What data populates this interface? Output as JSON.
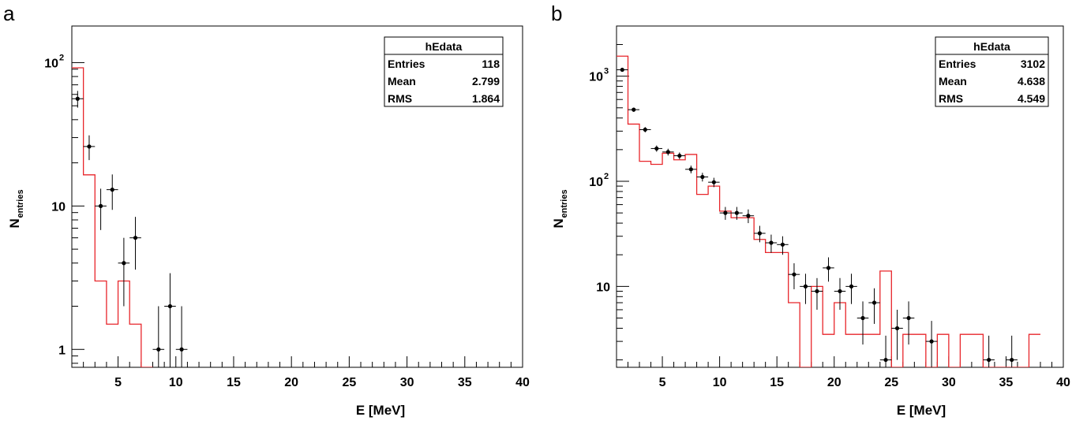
{
  "chart_data": [
    {
      "panel_label": "a",
      "type": "line",
      "description_type": "histogram with data points and error bars (log y)",
      "xlabel": "E [MeV]",
      "ylabel_main": "N",
      "ylabel_sub": "entries",
      "xlim": [
        1,
        40
      ],
      "ylim": [
        0.75,
        180
      ],
      "y_scale": "log",
      "x_ticks": [
        5,
        10,
        15,
        20,
        25,
        30,
        35,
        40
      ],
      "y_ticks": [
        {
          "value": 1,
          "label": "1",
          "sup": ""
        },
        {
          "value": 10,
          "label": "10",
          "sup": ""
        },
        {
          "value": 100,
          "label": "10",
          "sup": "2"
        }
      ],
      "stats_box": {
        "title": "hEdata",
        "rows": [
          {
            "label": "Entries",
            "value": "118"
          },
          {
            "label": "Mean",
            "value": "2.799"
          },
          {
            "label": "RMS",
            "value": "1.864"
          }
        ]
      },
      "points": [
        {
          "x": 1.5,
          "y": 56,
          "yerr": 7.5
        },
        {
          "x": 2.5,
          "y": 26,
          "yerr": 5.1
        },
        {
          "x": 3.5,
          "y": 10,
          "yerr": 3.2
        },
        {
          "x": 4.5,
          "y": 13,
          "yerr": 3.6
        },
        {
          "x": 5.5,
          "y": 4,
          "yerr": 2
        },
        {
          "x": 6.5,
          "y": 6,
          "yerr": 2.4
        },
        {
          "x": 8.5,
          "y": 1,
          "yerr": 1
        },
        {
          "x": 9.5,
          "y": 2,
          "yerr": 1.4
        },
        {
          "x": 10.5,
          "y": 1,
          "yerr": 1
        }
      ],
      "histogram": [
        {
          "x0": 1,
          "x1": 2,
          "y": 92
        },
        {
          "x0": 2,
          "x1": 3,
          "y": 16.5
        },
        {
          "x0": 3,
          "x1": 4,
          "y": 3
        },
        {
          "x0": 4,
          "x1": 5,
          "y": 1.5
        },
        {
          "x0": 5,
          "x1": 6,
          "y": 3
        },
        {
          "x0": 6,
          "x1": 7,
          "y": 1.5
        },
        {
          "x0": 7,
          "x1": 8,
          "y": 0
        }
      ],
      "colors": {
        "histogram": "#e8262b",
        "points": "#000000"
      }
    },
    {
      "panel_label": "b",
      "type": "line",
      "description_type": "histogram with data points and error bars (log y)",
      "xlabel": "E [MeV]",
      "ylabel_main": "N",
      "ylabel_sub": "entries",
      "xlim": [
        1,
        40
      ],
      "ylim": [
        1.7,
        3000
      ],
      "y_scale": "log",
      "x_ticks": [
        5,
        10,
        15,
        20,
        25,
        30,
        35,
        40
      ],
      "y_ticks": [
        {
          "value": 10,
          "label": "10",
          "sup": ""
        },
        {
          "value": 100,
          "label": "10",
          "sup": "2"
        },
        {
          "value": 1000,
          "label": "10",
          "sup": "3"
        }
      ],
      "stats_box": {
        "title": "hEdata",
        "rows": [
          {
            "label": "Entries",
            "value": "3102"
          },
          {
            "label": "Mean",
            "value": "4.638"
          },
          {
            "label": "RMS",
            "value": "4.549"
          }
        ]
      },
      "points": [
        {
          "x": 1.5,
          "y": 1150,
          "yerr": 34
        },
        {
          "x": 2.5,
          "y": 480,
          "yerr": 22
        },
        {
          "x": 3.5,
          "y": 310,
          "yerr": 18
        },
        {
          "x": 4.5,
          "y": 205,
          "yerr": 14
        },
        {
          "x": 5.5,
          "y": 190,
          "yerr": 14
        },
        {
          "x": 6.5,
          "y": 175,
          "yerr": 13
        },
        {
          "x": 7.5,
          "y": 130,
          "yerr": 11
        },
        {
          "x": 8.5,
          "y": 110,
          "yerr": 10.5
        },
        {
          "x": 9.5,
          "y": 98,
          "yerr": 10
        },
        {
          "x": 10.5,
          "y": 50,
          "yerr": 7
        },
        {
          "x": 11.5,
          "y": 50,
          "yerr": 7
        },
        {
          "x": 12.5,
          "y": 47,
          "yerr": 7
        },
        {
          "x": 13.5,
          "y": 32,
          "yerr": 5.7
        },
        {
          "x": 14.5,
          "y": 26,
          "yerr": 5.1
        },
        {
          "x": 15.5,
          "y": 25,
          "yerr": 5
        },
        {
          "x": 16.5,
          "y": 13,
          "yerr": 3.6
        },
        {
          "x": 17.5,
          "y": 10,
          "yerr": 3.2
        },
        {
          "x": 18.5,
          "y": 9,
          "yerr": 3
        },
        {
          "x": 19.5,
          "y": 15,
          "yerr": 3.9
        },
        {
          "x": 20.5,
          "y": 9,
          "yerr": 3
        },
        {
          "x": 21.5,
          "y": 10,
          "yerr": 3.2
        },
        {
          "x": 22.5,
          "y": 5,
          "yerr": 2.2
        },
        {
          "x": 23.5,
          "y": 7,
          "yerr": 2.6
        },
        {
          "x": 24.5,
          "y": 2,
          "yerr": 1.4
        },
        {
          "x": 25.5,
          "y": 4,
          "yerr": 2
        },
        {
          "x": 26.5,
          "y": 5,
          "yerr": 2.2
        },
        {
          "x": 28.5,
          "y": 3,
          "yerr": 1.7
        },
        {
          "x": 33.5,
          "y": 2,
          "yerr": 1.4
        },
        {
          "x": 35.5,
          "y": 2,
          "yerr": 1.4
        }
      ],
      "histogram": [
        {
          "x0": 1,
          "x1": 2,
          "y": 1550
        },
        {
          "x0": 2,
          "x1": 3,
          "y": 350
        },
        {
          "x0": 3,
          "x1": 4,
          "y": 155
        },
        {
          "x0": 4,
          "x1": 5,
          "y": 145
        },
        {
          "x0": 5,
          "x1": 6,
          "y": 185
        },
        {
          "x0": 6,
          "x1": 7,
          "y": 160
        },
        {
          "x0": 7,
          "x1": 8,
          "y": 180
        },
        {
          "x0": 8,
          "x1": 9,
          "y": 75
        },
        {
          "x0": 9,
          "x1": 10,
          "y": 90
        },
        {
          "x0": 10,
          "x1": 11,
          "y": 52
        },
        {
          "x0": 11,
          "x1": 12,
          "y": 45
        },
        {
          "x0": 12,
          "x1": 13,
          "y": 45
        },
        {
          "x0": 13,
          "x1": 14,
          "y": 28
        },
        {
          "x0": 14,
          "x1": 15,
          "y": 21
        },
        {
          "x0": 15,
          "x1": 16,
          "y": 21
        },
        {
          "x0": 16,
          "x1": 17,
          "y": 7
        },
        {
          "x0": 17,
          "x1": 18,
          "y": 0
        },
        {
          "x0": 18,
          "x1": 19,
          "y": 10
        },
        {
          "x0": 19,
          "x1": 20,
          "y": 3.5
        },
        {
          "x0": 20,
          "x1": 21,
          "y": 7
        },
        {
          "x0": 21,
          "x1": 24,
          "y": 3.5
        },
        {
          "x0": 24,
          "x1": 25,
          "y": 14
        },
        {
          "x0": 25,
          "x1": 26,
          "y": 0
        },
        {
          "x0": 26,
          "x1": 28,
          "y": 3.5
        },
        {
          "x0": 28,
          "x1": 29,
          "y": 0
        },
        {
          "x0": 29,
          "x1": 30,
          "y": 3.5
        },
        {
          "x0": 30,
          "x1": 31,
          "y": 0
        },
        {
          "x0": 31,
          "x1": 33,
          "y": 3.5
        },
        {
          "x0": 33,
          "x1": 37,
          "y": 0
        },
        {
          "x0": 37,
          "x1": 38,
          "y": 3.5
        }
      ],
      "colors": {
        "histogram": "#e8262b",
        "points": "#000000"
      }
    }
  ]
}
